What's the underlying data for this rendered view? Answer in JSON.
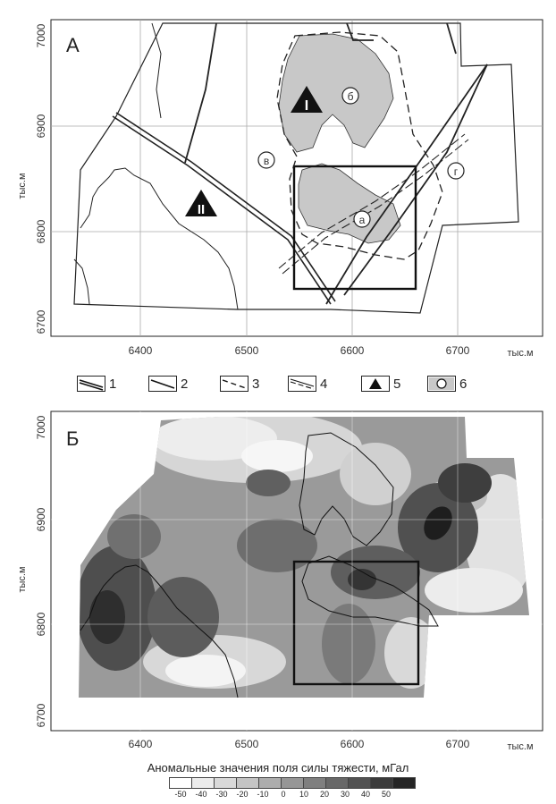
{
  "panel_a": {
    "label": "А",
    "x_ticks": [
      "6400",
      "6500",
      "6600",
      "6700"
    ],
    "y_ticks": [
      "7000",
      "6900",
      "6800",
      "6700"
    ],
    "x_unit": "тыс.м",
    "y_unit": "тыс.м",
    "structure_I": "I",
    "structure_II": "II",
    "markers": [
      "б",
      "в",
      "а",
      "г"
    ]
  },
  "legend": {
    "items": [
      "1",
      "2",
      "3",
      "4",
      "5",
      "6"
    ]
  },
  "panel_b": {
    "label": "Б",
    "x_ticks": [
      "6400",
      "6500",
      "6600",
      "6700"
    ],
    "y_ticks": [
      "7000",
      "6900",
      "6800",
      "6700"
    ],
    "x_unit": "тыс.м",
    "y_unit": "тыс.м"
  },
  "colorbar": {
    "caption": "Аномальные значения поля силы тяжести, мГал",
    "labels": [
      "-50",
      "-40",
      "-30",
      "-20",
      "-10",
      "0",
      "10",
      "20",
      "30",
      "40",
      "50"
    ],
    "colors": [
      "#ffffff",
      "#ececec",
      "#d9d9d9",
      "#c4c4c4",
      "#adadad",
      "#969696",
      "#7f7f7f",
      "#686868",
      "#525252",
      "#3b3b3b",
      "#252525"
    ]
  }
}
